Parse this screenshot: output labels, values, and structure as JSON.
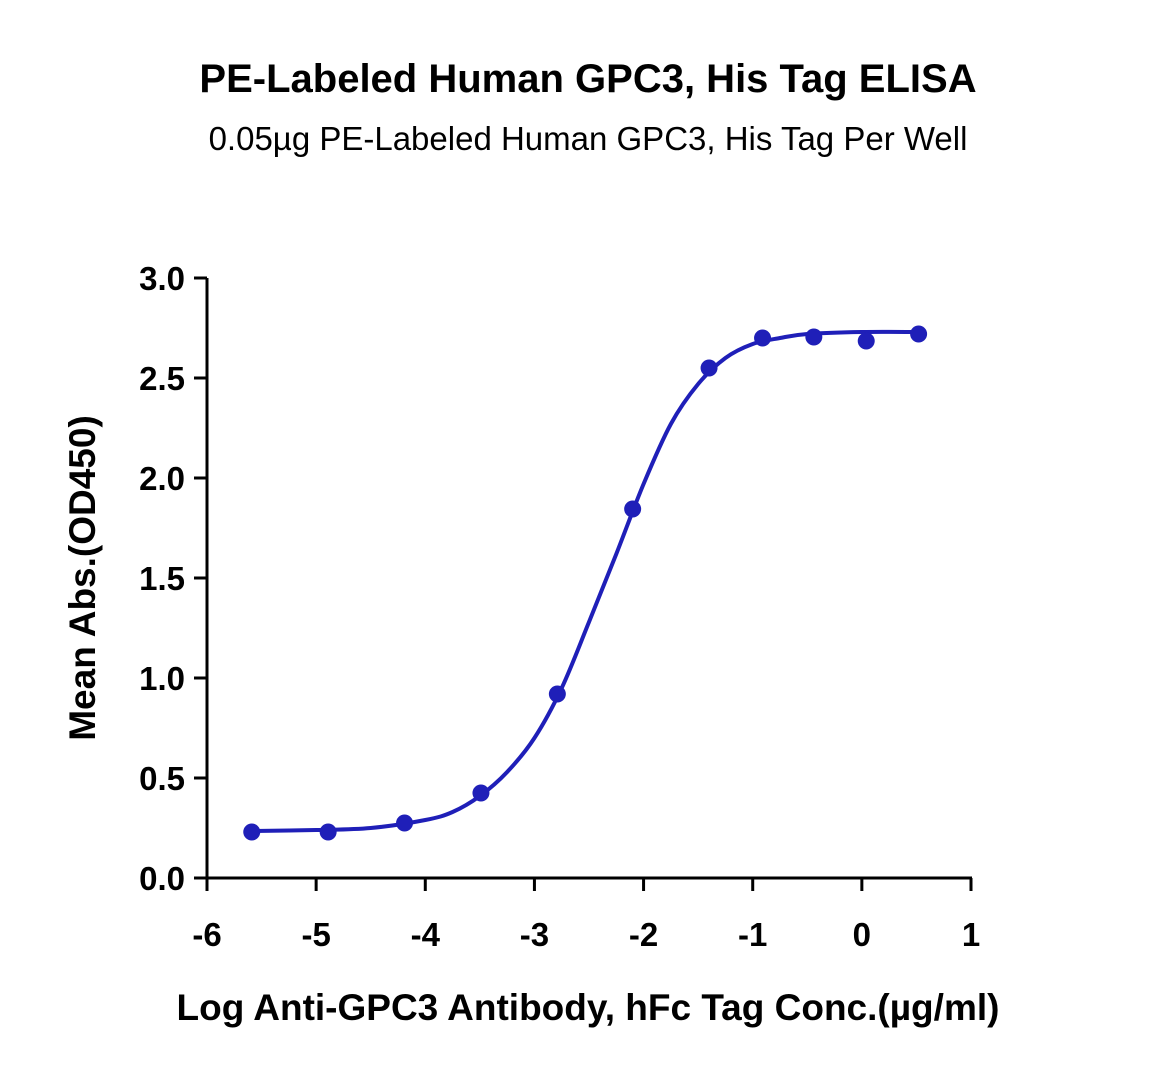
{
  "chart_data": {
    "type": "scatter",
    "title": "PE-Labeled Human GPC3, His Tag ELISA",
    "subtitle": "0.05µg PE-Labeled Human GPC3, His Tag Per Well",
    "x_label": "Log Anti-GPC3 Antibody, hFc Tag Conc.(µg/ml)",
    "y_label": "Mean Abs.(OD450)",
    "color": "#1f1fb8",
    "x": [
      -5.59,
      -4.89,
      -4.19,
      -3.49,
      -2.79,
      -2.1,
      -1.4,
      -0.91,
      -0.44,
      0.04,
      0.52
    ],
    "values": [
      0.23,
      0.23,
      0.275,
      0.425,
      0.92,
      1.845,
      2.55,
      2.7,
      2.705,
      2.685,
      2.72
    ],
    "fit_x": [
      -5.6,
      -5,
      -4.5,
      -4,
      -3.75,
      -3.5,
      -3.25,
      -3,
      -2.75,
      -2.5,
      -2.25,
      -2,
      -1.75,
      -1.5,
      -1.25,
      -1,
      -0.75,
      -0.5,
      0,
      0.5
    ],
    "fit_values": [
      0.235,
      0.24,
      0.25,
      0.29,
      0.33,
      0.41,
      0.53,
      0.7,
      0.95,
      1.28,
      1.62,
      1.97,
      2.27,
      2.47,
      2.6,
      2.67,
      2.7,
      2.72,
      2.73,
      2.73
    ],
    "xlim": [
      -6,
      1
    ],
    "xticks": [
      -6,
      -5,
      -4,
      -3,
      -2,
      -1,
      0,
      1
    ],
    "ylim": [
      0,
      3
    ],
    "yticks": [
      {
        "value": 0,
        "label": "0.0"
      },
      0.5,
      {
        "value": 1,
        "label": "1.0"
      },
      1.5,
      {
        "value": 2,
        "label": "2.0"
      },
      2.5,
      {
        "value": 3,
        "label": "3.0"
      }
    ]
  }
}
